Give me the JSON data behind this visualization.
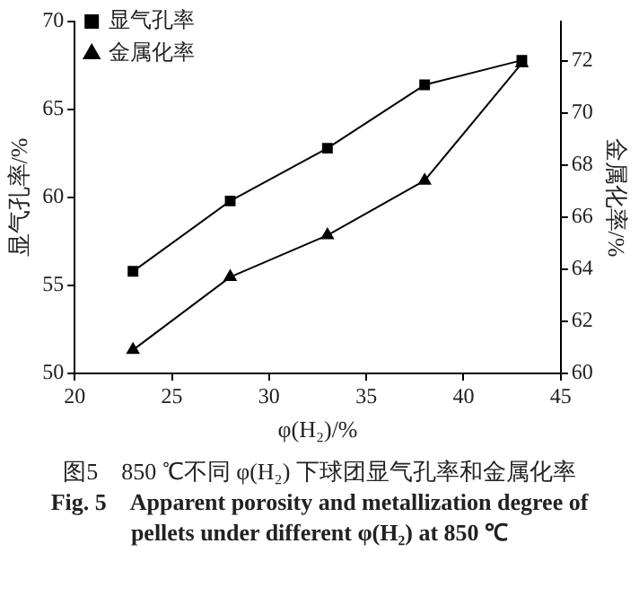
{
  "chart_data": {
    "type": "line",
    "title": "图5　850 ℃不同 φ(H₂) 下球团显气孔率和金属化率",
    "subtitle": "Fig. 5　Apparent porosity and metallization degree of pellets under different φ(H₂) at 850 ℃",
    "xlabel": "φ(H₂)/%",
    "ylabel": "显气孔率/%",
    "y2label": "金属化率/%",
    "x": [
      23,
      28,
      33,
      38,
      43
    ],
    "series": [
      {
        "name": "显气孔率",
        "color": "#000000",
        "marker": "square",
        "values": [
          55.8,
          59.8,
          62.8,
          66.4,
          67.8
        ]
      },
      {
        "name": "金属化率",
        "color": "#000000",
        "marker": "triangle",
        "axis": "y2",
        "values": [
          60.9,
          63.7,
          65.3,
          67.4,
          71.9
        ]
      }
    ],
    "xlim": [
      20,
      45
    ],
    "xticks": [
      20,
      25,
      30,
      35,
      40,
      45
    ],
    "ylim": [
      50,
      70
    ],
    "yticks": [
      50,
      55,
      60,
      65,
      70
    ],
    "y2lim": [
      60,
      73.5
    ],
    "y2ticks": [
      60,
      62,
      64,
      66,
      68,
      70,
      72
    ],
    "grid": false,
    "legend": "top left",
    "line_style": "solid"
  }
}
